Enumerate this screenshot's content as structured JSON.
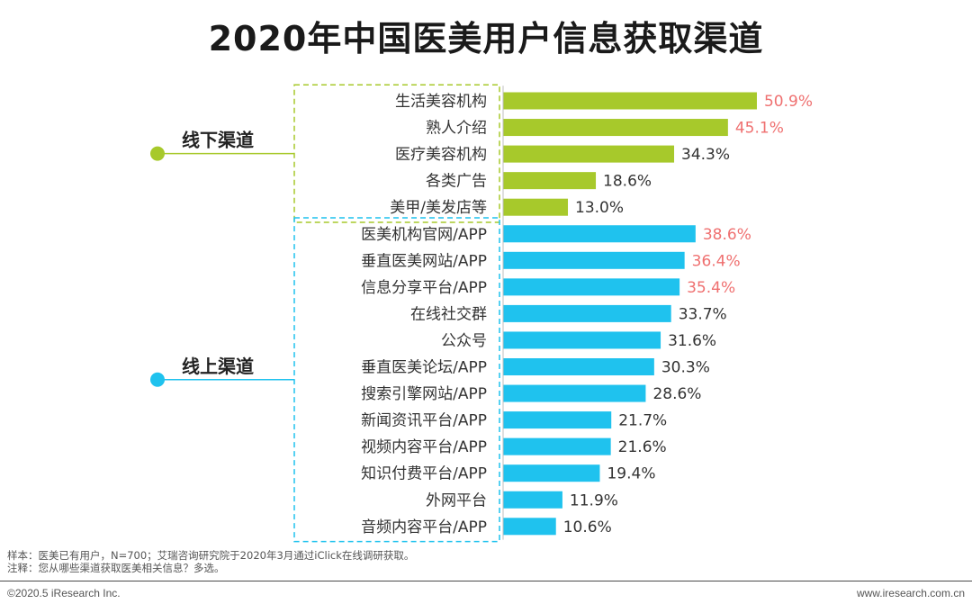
{
  "chart_data": {
    "type": "bar",
    "orientation": "horizontal",
    "title": "2020年中国医美用户信息获取渠道",
    "unit": "%",
    "highlight_color": "#ef7070",
    "label_color": "#333333",
    "groups": [
      {
        "name": "线下渠道",
        "color": "#a7c92b",
        "items": [
          {
            "label": "生活美容机构",
            "value": 50.9,
            "highlight": true
          },
          {
            "label": "熟人介绍",
            "value": 45.1,
            "highlight": true
          },
          {
            "label": "医疗美容机构",
            "value": 34.3,
            "highlight": false
          },
          {
            "label": "各类广告",
            "value": 18.6,
            "highlight": false
          },
          {
            "label": "美甲/美发店等",
            "value": 13.0,
            "highlight": false
          }
        ]
      },
      {
        "name": "线上渠道",
        "color": "#1fc2ee",
        "items": [
          {
            "label": "医美机构官网/APP",
            "value": 38.6,
            "highlight": true
          },
          {
            "label": "垂直医美网站/APP",
            "value": 36.4,
            "highlight": true
          },
          {
            "label": "信息分享平台/APP",
            "value": 35.4,
            "highlight": true
          },
          {
            "label": "在线社交群",
            "value": 33.7,
            "highlight": false
          },
          {
            "label": "公众号",
            "value": 31.6,
            "highlight": false
          },
          {
            "label": "垂直医美论坛/APP",
            "value": 30.3,
            "highlight": false
          },
          {
            "label": "搜索引擎网站/APP",
            "value": 28.6,
            "highlight": false
          },
          {
            "label": "新闻资讯平台/APP",
            "value": 21.7,
            "highlight": false
          },
          {
            "label": "视频内容平台/APP",
            "value": 21.6,
            "highlight": false
          },
          {
            "label": "知识付费平台/APP",
            "value": 19.4,
            "highlight": false
          },
          {
            "label": "外网平台",
            "value": 11.9,
            "highlight": false
          },
          {
            "label": "音频内容平台/APP",
            "value": 10.6,
            "highlight": false
          }
        ]
      }
    ]
  },
  "notes": {
    "sample": "样本：医美已有用户，N=700；艾瑞咨询研究院于2020年3月通过iClick在线调研获取。",
    "remark": "注释：您从哪些渠道获取医美相关信息？多选。"
  },
  "footer": {
    "copyright": "©2020.5 iResearch Inc.",
    "website": "www.iresearch.com.cn"
  }
}
